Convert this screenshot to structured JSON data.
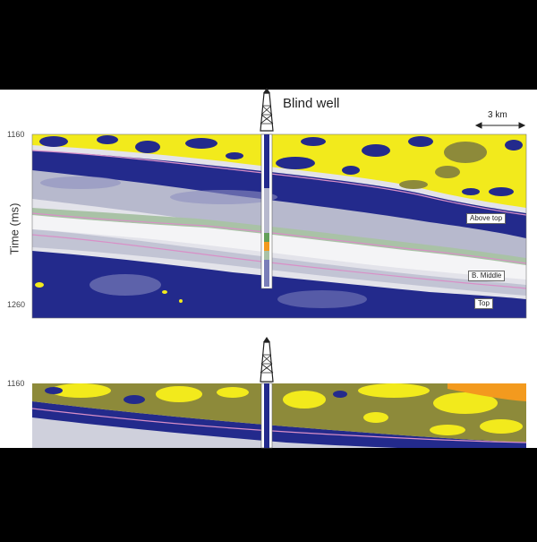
{
  "figure": {
    "well_label": "Blind well",
    "scale_bar": "3 km",
    "y_axis_label": "Time (ms)",
    "panel_top": {
      "y_top": "1160",
      "y_bottom": "1260"
    },
    "panel_bottom": {
      "y_top": "1160"
    },
    "horizons": [
      "Above top",
      "B. Middle",
      "Top"
    ]
  },
  "colors": {
    "letterbox": "#000000",
    "background": "#ffffff",
    "yellow": "#f2ea1c",
    "olive": "#8d8a3a",
    "navy": "#232a8c",
    "grey_light": "#e8e8ee",
    "grey_mid": "#b9bacb",
    "green_grey": "#a9c2a6",
    "orange": "#f39a1e",
    "horizon_line": "#d98fc7"
  },
  "icons": [
    "derrick-icon"
  ]
}
